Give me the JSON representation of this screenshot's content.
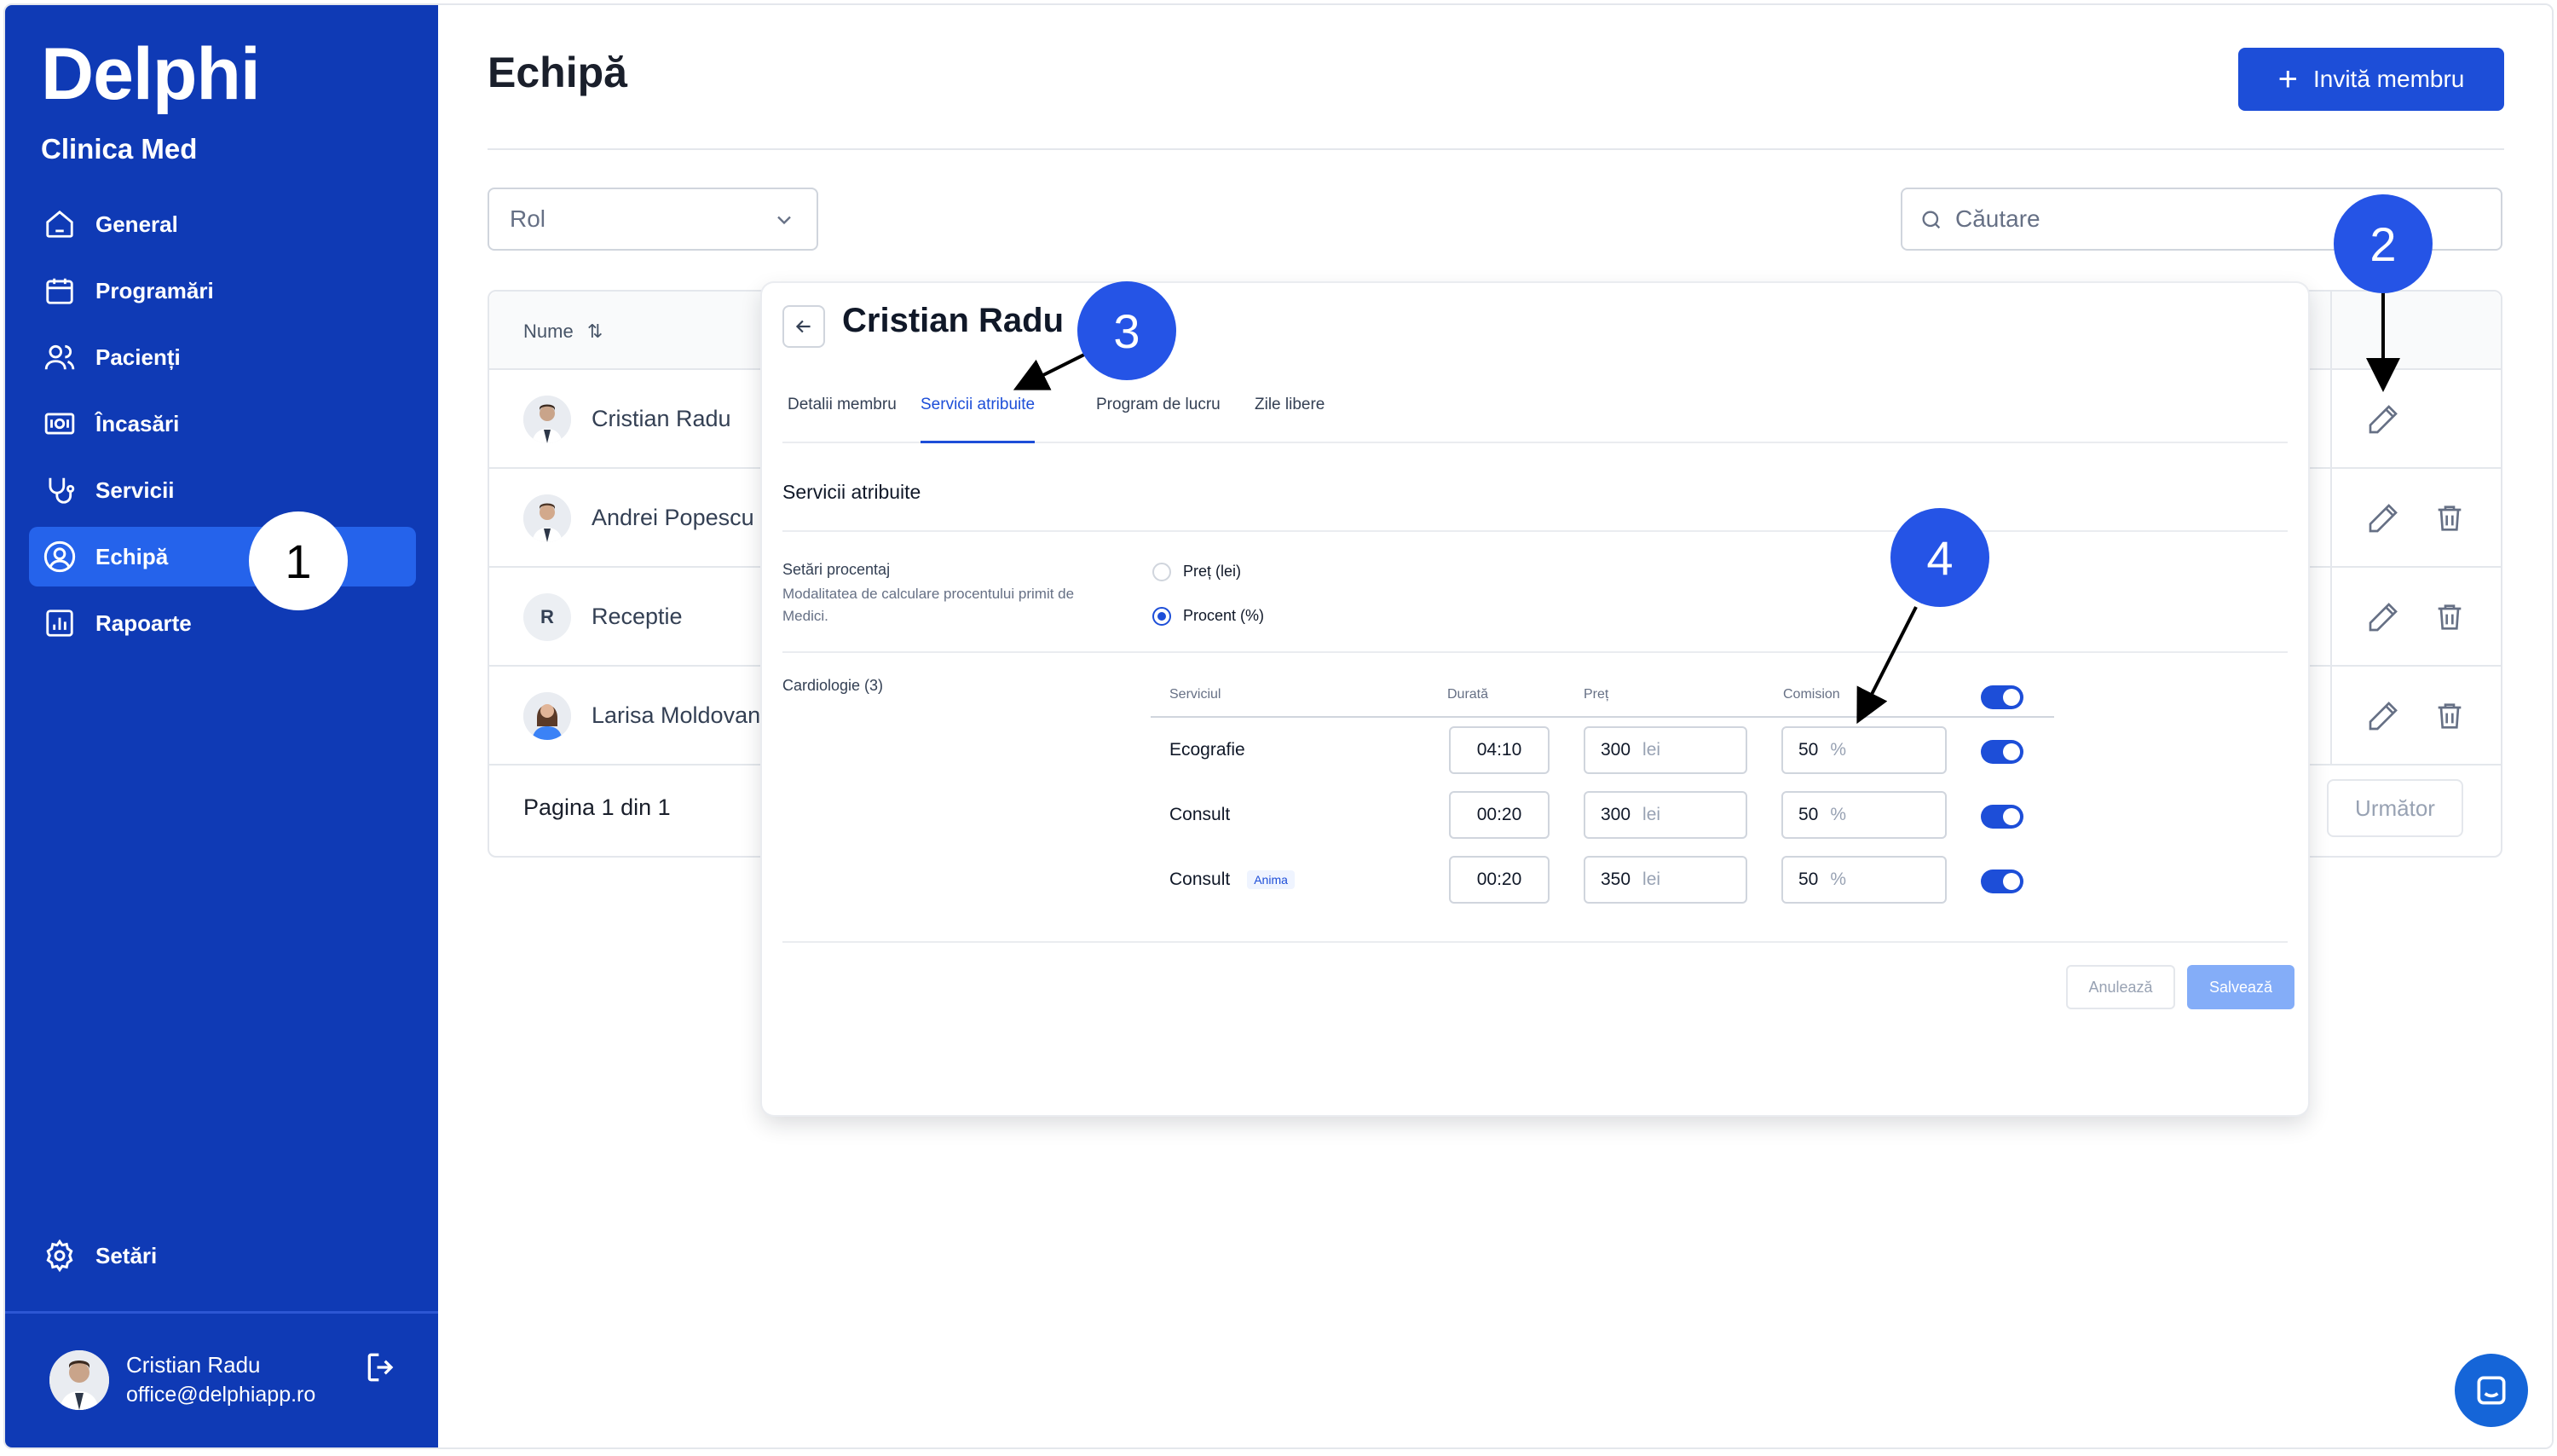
{
  "brand": {
    "logo": "Delphi",
    "clinic": "Clinica Med"
  },
  "sidebar": {
    "items": [
      {
        "label": "General",
        "icon": "home-icon"
      },
      {
        "label": "Programări",
        "icon": "calendar-icon"
      },
      {
        "label": "Pacienți",
        "icon": "users-icon"
      },
      {
        "label": "Încasări",
        "icon": "money-icon"
      },
      {
        "label": "Servicii",
        "icon": "stethoscope-icon"
      },
      {
        "label": "Echipă",
        "icon": "user-circle-icon",
        "active": true
      },
      {
        "label": "Rapoarte",
        "icon": "chart-icon"
      }
    ],
    "settings_label": "Setări",
    "user": {
      "name": "Cristian Radu",
      "email": "office@delphiapp.ro"
    }
  },
  "header": {
    "title": "Echipă",
    "invite_label": "Invită membru"
  },
  "filters": {
    "role_placeholder": "Rol",
    "search_placeholder": "Căutare"
  },
  "table": {
    "col_name": "Nume",
    "rows": [
      {
        "name": "Cristian Radu"
      },
      {
        "name": "Andrei Popescu"
      },
      {
        "name": "Receptie",
        "initial": "R"
      },
      {
        "name": "Larisa Moldovan"
      }
    ],
    "pagination": "Pagina 1 din 1",
    "next_label": "Următor"
  },
  "panel": {
    "title": "Cristian Radu",
    "tabs": [
      "Detalii membru",
      "Servicii atribuite",
      "Program de lucru",
      "Zile libere"
    ],
    "active_tab": "Servicii atribuite",
    "section_title": "Servicii atribuite",
    "percent_settings": {
      "label": "Setări procentaj",
      "description": "Modalitatea de calculare procentului primit de Medici.",
      "options": [
        "Preț (lei)",
        "Procent (%)"
      ],
      "selected": "Procent (%)"
    },
    "group": {
      "label": "Cardiologie (3)",
      "columns": [
        "Serviciul",
        "Durată",
        "Preț",
        "Comision"
      ],
      "services": [
        {
          "name": "Ecografie",
          "tag": "",
          "duration": "04:10",
          "price": "300",
          "price_unit": "lei",
          "commission": "50",
          "commission_unit": "%",
          "enabled": true
        },
        {
          "name": "Consult",
          "tag": "",
          "duration": "00:20",
          "price": "300",
          "price_unit": "lei",
          "commission": "50",
          "commission_unit": "%",
          "enabled": true
        },
        {
          "name": "Consult",
          "tag": "Anima",
          "duration": "00:20",
          "price": "350",
          "price_unit": "lei",
          "commission": "50",
          "commission_unit": "%",
          "enabled": true
        }
      ]
    },
    "cancel_label": "Anulează",
    "save_label": "Salvează"
  },
  "annotations": [
    "1",
    "2",
    "3",
    "4"
  ],
  "colors": {
    "sidebar": "#0f3ab5",
    "accent": "#1d4ed8",
    "active_nav": "#2563eb",
    "callout_blue": "#2554e6"
  }
}
